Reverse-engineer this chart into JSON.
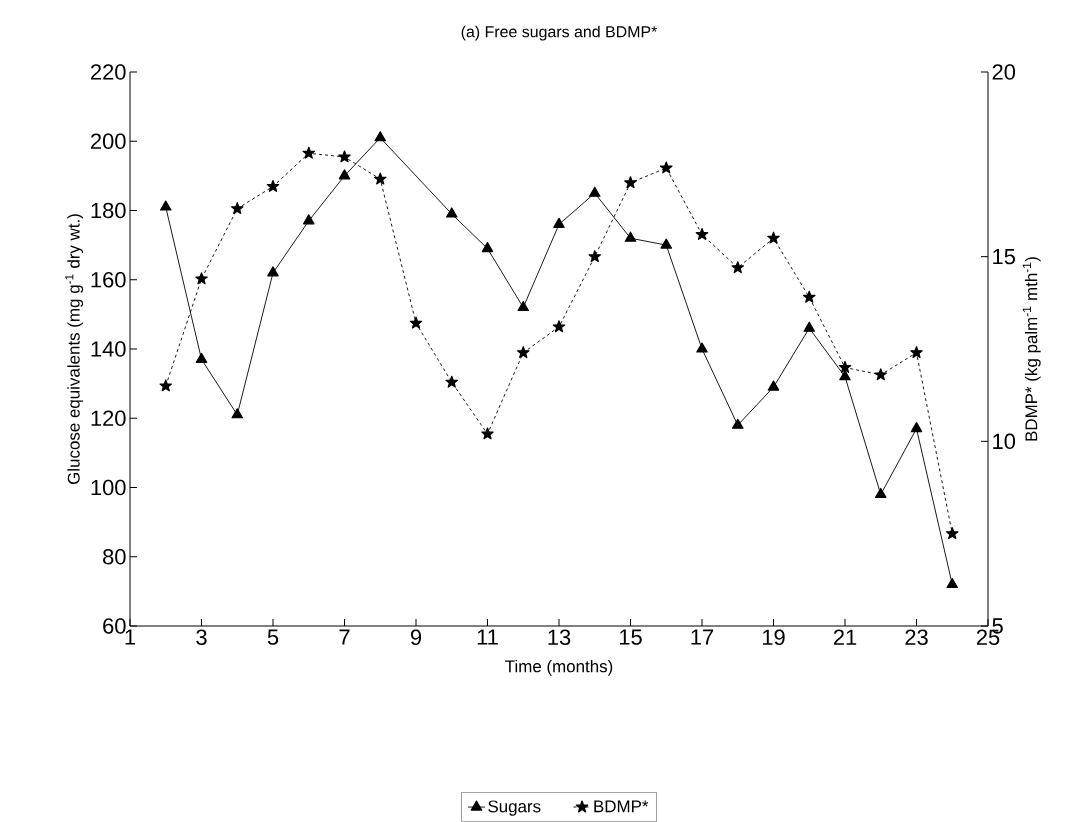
{
  "chart_data": {
    "type": "line",
    "title": "(a) Free sugars and BDMP*",
    "xlabel": "Time  (months)",
    "ylabel": "Glucose equivalents (mg g$^{-1}$ dry wt.)",
    "y2label": "BDMP* (kg palm$^{-1}$ mth$^{-1}$)",
    "series": [
      {
        "name": "Sugars",
        "color": "#000000",
        "marker": "triangle",
        "line_style": "solid",
        "x": [
          2,
          3,
          4,
          5,
          6,
          7,
          8,
          10,
          11,
          12,
          13,
          14,
          15,
          16,
          17,
          18,
          19,
          20,
          21,
          22,
          23,
          24
        ],
        "values": [
          181,
          137,
          121,
          162,
          177,
          190,
          201,
          179,
          169,
          152,
          176,
          185,
          172,
          170,
          140,
          118,
          129,
          146,
          132,
          98,
          117,
          72
        ]
      },
      {
        "name": "BDMP*",
        "color": "#000000",
        "marker": "star",
        "line_style": "dashed",
        "axis": "y2",
        "x": [
          2,
          3,
          4,
          5,
          6,
          7,
          8,
          9,
          10,
          11,
          12,
          13,
          14,
          15,
          16,
          17,
          18,
          19,
          20,
          21,
          22,
          23,
          24
        ],
        "values": [
          11.5,
          14.4,
          16.3,
          16.9,
          17.8,
          17.7,
          17.1,
          13.2,
          11.6,
          10.2,
          12.4,
          13.1,
          15.0,
          17.0,
          17.4,
          15.6,
          14.7,
          15.5,
          13.9,
          12.0,
          11.8,
          12.4,
          7.5
        ]
      }
    ],
    "xlim": [
      1,
      25
    ],
    "xticks": [
      1,
      3,
      5,
      7,
      9,
      11,
      13,
      15,
      17,
      19,
      21,
      23,
      25
    ],
    "ylim": [
      60,
      220
    ],
    "yticks": [
      60,
      80,
      100,
      120,
      140,
      160,
      180,
      200,
      220
    ],
    "y2lim": [
      5,
      20
    ],
    "y2ticks": [
      5,
      10,
      15,
      20
    ],
    "legend": "bottom"
  }
}
